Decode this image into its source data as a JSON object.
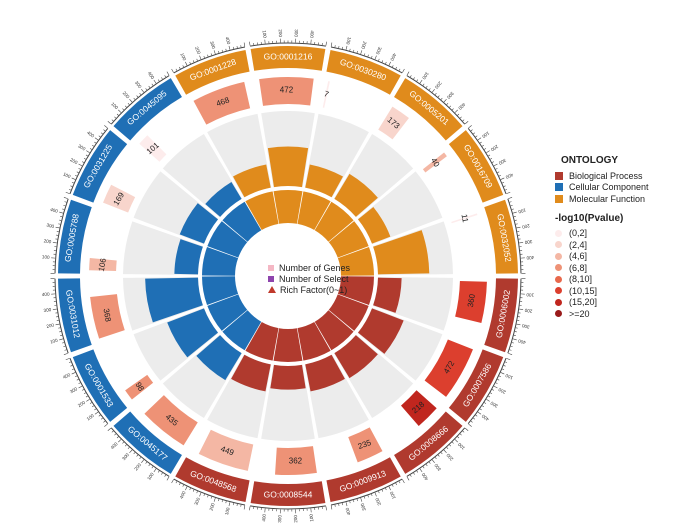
{
  "chart_data": {
    "type": "circos",
    "title": "",
    "ontology_legend": {
      "title": "ONTOLOGY",
      "items": [
        {
          "name": "Biological Process",
          "color": "#b03a2e"
        },
        {
          "name": "Cellular Component",
          "color": "#1f6fb5"
        },
        {
          "name": "Molecular Function",
          "color": "#e08b1c"
        }
      ]
    },
    "pvalue_legend": {
      "title": "-log10(Pvalue)",
      "items": [
        {
          "label": "(0,2]",
          "color": "#fdecec"
        },
        {
          "label": "(2,4]",
          "color": "#f8d5cc"
        },
        {
          "label": "(4,6]",
          "color": "#f4b7a4"
        },
        {
          "label": "(6,8]",
          "color": "#ee9276"
        },
        {
          "label": "(8,10]",
          "color": "#e8684c"
        },
        {
          "label": "(10,15]",
          "color": "#dc3f2e"
        },
        {
          "label": "(15,20]",
          "color": "#c0261e"
        },
        {
          "label": ">=20",
          "color": "#991b1b"
        }
      ]
    },
    "inner_legend": {
      "genes": "Number of Genes",
      "select": "Number of Select",
      "rich": "Rich Factor(0~1)",
      "genes_color": "#f4b7c4",
      "select_color": "#8e44ad",
      "rich_color": "#c0392b"
    },
    "axis_max": 500,
    "terms": [
      {
        "id": "GO:0001216",
        "ontology": "MF",
        "genes": 472,
        "gene_color": "#ee9276",
        "select": 37,
        "rich": 0.55
      },
      {
        "id": "GO:0030280",
        "ontology": "MF",
        "genes": 7,
        "gene_color": "#fdecec",
        "select": 7,
        "rich": 0.35
      },
      {
        "id": "GO:0005201",
        "ontology": "MF",
        "genes": 173,
        "gene_color": "#f8d5cc",
        "select": 10,
        "rich": 0.42
      },
      {
        "id": "GO:0016709",
        "ontology": "MF",
        "genes": 40,
        "gene_color": "#f4b7a4",
        "select": 5,
        "rich": 0.3
      },
      {
        "id": "GO:0032052",
        "ontology": "MF",
        "genes": 11,
        "gene_color": "#fdecec",
        "select": 3,
        "rich": 0.7
      },
      {
        "id": "GO:0006002",
        "ontology": "BP",
        "genes": 360,
        "gene_color": "#dc3f2e",
        "select": 28,
        "rich": 0.35
      },
      {
        "id": "GO:0007586",
        "ontology": "BP",
        "genes": 472,
        "gene_color": "#dc3f2e",
        "select": 19,
        "rich": 0.48
      },
      {
        "id": "GO:0008666",
        "ontology": "BP",
        "genes": 218,
        "gene_color": "#c0261e",
        "select": 20,
        "rich": 0.42
      },
      {
        "id": "GO:0009913",
        "ontology": "BP",
        "genes": 235,
        "gene_color": "#ee9276",
        "select": 18,
        "rich": 0.4
      },
      {
        "id": "GO:0008544",
        "ontology": "BP",
        "genes": 362,
        "gene_color": "#ee9276",
        "select": 22,
        "rich": 0.35
      },
      {
        "id": "GO:0048568",
        "ontology": "BP",
        "genes": 449,
        "gene_color": "#f4b7a4",
        "select": 23,
        "rich": 0.4
      },
      {
        "id": "GO:0045177",
        "ontology": "CC",
        "genes": 435,
        "gene_color": "#ee9276",
        "select": 25,
        "rich": 0.45
      },
      {
        "id": "GO:0001533",
        "ontology": "CC",
        "genes": 98,
        "gene_color": "#ee9276",
        "select": 10,
        "rich": 0.55
      },
      {
        "id": "GO:0031012",
        "ontology": "CC",
        "genes": 368,
        "gene_color": "#ee9276",
        "select": 22,
        "rich": 0.72
      },
      {
        "id": "GO:0005788",
        "ontology": "CC",
        "genes": 106,
        "gene_color": "#f4b7a4",
        "select": 10,
        "rich": 0.35
      },
      {
        "id": "GO:0031225",
        "ontology": "CC",
        "genes": 169,
        "gene_color": "#f8d5cc",
        "select": 10,
        "rich": 0.38
      },
      {
        "id": "GO:0045095",
        "ontology": "CC",
        "genes": 101,
        "gene_color": "#fdecec",
        "select": 7,
        "rich": 0.3
      },
      {
        "id": "GO:0001228",
        "ontology": "MF",
        "genes": 468,
        "gene_color": "#ee9276",
        "select": 24,
        "rich": 0.35
      }
    ],
    "tick_labels": [
      "100",
      "200",
      "300",
      "400"
    ]
  }
}
